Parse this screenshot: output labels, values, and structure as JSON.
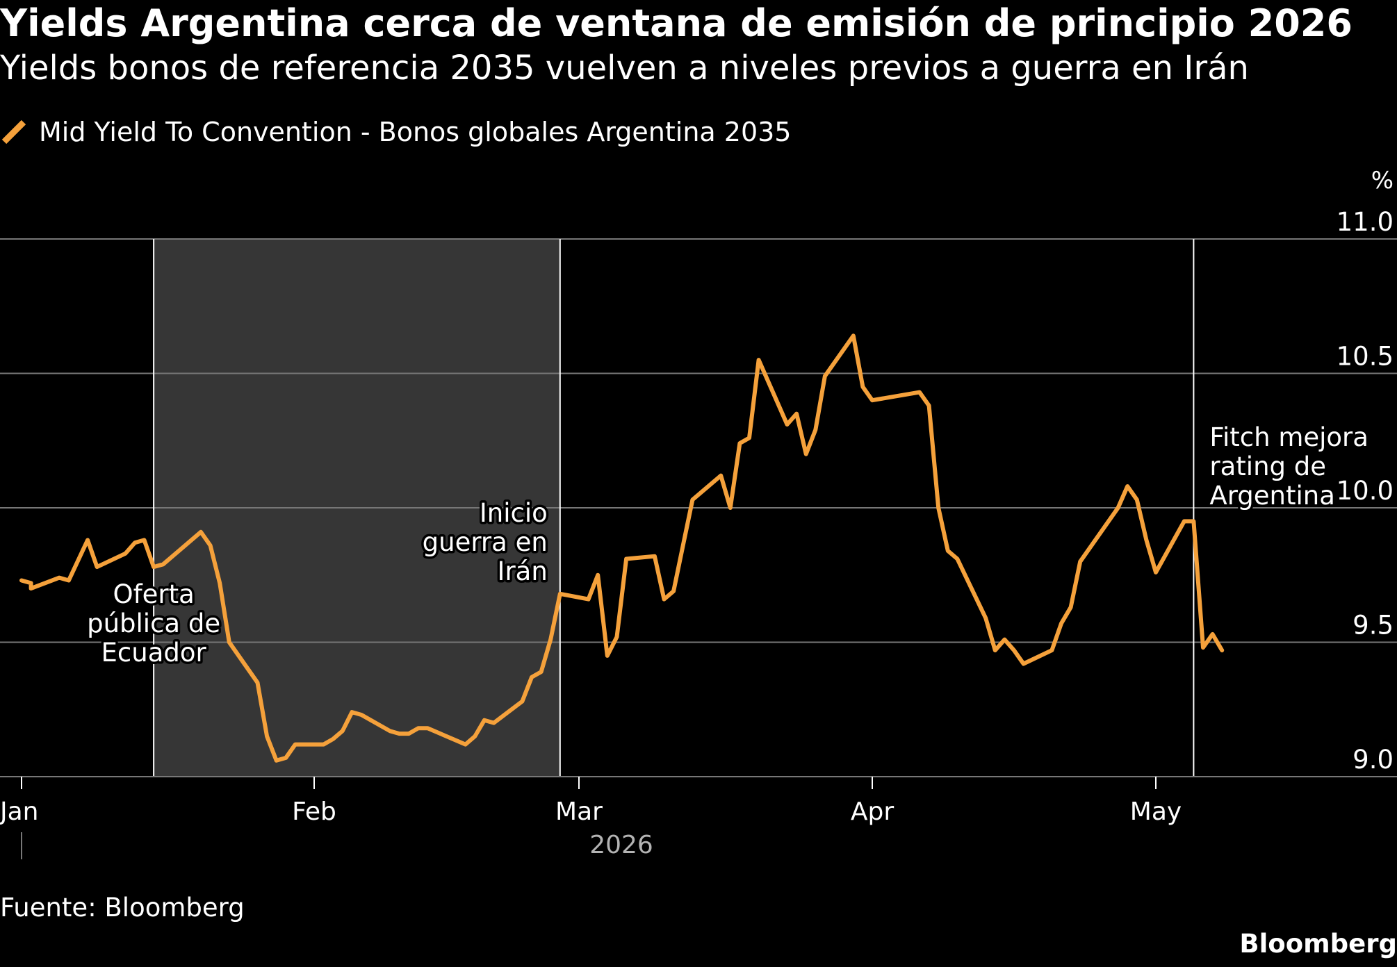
{
  "title": "Yields Argentina cerca de ventana de emisión de principio 2026",
  "subtitle": "Yields bonos de referencia 2035 vuelven a niveles previos a guerra en Irán",
  "legend": {
    "label": "Mid Yield To Convention - Bonos globales Argentina 2035",
    "color": "#f5a13b",
    "icon": "diagonal-line-icon"
  },
  "source": "Fuente: Bloomberg",
  "brand": "Bloomberg",
  "colors": {
    "background": "#000000",
    "line": "#f5a13b",
    "shaded_region": "#363636",
    "gridline": "#777777",
    "reference_line": "#ffffff",
    "text": "#ffffff",
    "year_label": "#b3b3b3"
  },
  "chart_data": {
    "type": "line",
    "title": "Yields Argentina cerca de ventana de emisión de principio 2026",
    "subtitle": "Yields bonos de referencia 2035 vuelven a niveles previos a guerra en Irán",
    "y_unit": "%",
    "ylim": [
      9.0,
      11.0
    ],
    "y_ticks": [
      9.0,
      9.5,
      10.0,
      10.5,
      11.0
    ],
    "y_tick_labels": [
      "9.0",
      "9.5",
      "10.0",
      "10.5",
      "11.0"
    ],
    "xlim": [
      "2026-01-01",
      "2026-05-31"
    ],
    "x_ticks": [
      "2026-01-01",
      "2026-02-01",
      "2026-03-01",
      "2026-04-01",
      "2026-05-01"
    ],
    "x_tick_labels": [
      "Jan",
      "Feb",
      "Mar",
      "Apr",
      "May"
    ],
    "x_year_label": "2026",
    "grid": true,
    "legend_position": "top-left",
    "series": [
      {
        "name": "Mid Yield To Convention - Bonos globales Argentina 2035",
        "color": "#f5a13b",
        "points": [
          [
            "2026-01-01",
            9.73
          ],
          [
            "2026-01-02",
            9.72
          ],
          [
            "2026-01-02",
            9.7
          ],
          [
            "2026-01-05",
            9.74
          ],
          [
            "2026-01-06",
            9.73
          ],
          [
            "2026-01-08",
            9.88
          ],
          [
            "2026-01-09",
            9.78
          ],
          [
            "2026-01-12",
            9.83
          ],
          [
            "2026-01-13",
            9.87
          ],
          [
            "2026-01-14",
            9.88
          ],
          [
            "2026-01-15",
            9.78
          ],
          [
            "2026-01-16",
            9.79
          ],
          [
            "2026-01-20",
            9.91
          ],
          [
            "2026-01-21",
            9.86
          ],
          [
            "2026-01-22",
            9.72
          ],
          [
            "2026-01-23",
            9.5
          ],
          [
            "2026-01-26",
            9.35
          ],
          [
            "2026-01-27",
            9.15
          ],
          [
            "2026-01-28",
            9.06
          ],
          [
            "2026-01-29",
            9.07
          ],
          [
            "2026-01-30",
            9.12
          ],
          [
            "2026-02-02",
            9.12
          ],
          [
            "2026-02-03",
            9.14
          ],
          [
            "2026-02-04",
            9.17
          ],
          [
            "2026-02-05",
            9.24
          ],
          [
            "2026-02-06",
            9.23
          ],
          [
            "2026-02-09",
            9.17
          ],
          [
            "2026-02-10",
            9.16
          ],
          [
            "2026-02-11",
            9.16
          ],
          [
            "2026-02-12",
            9.18
          ],
          [
            "2026-02-13",
            9.18
          ],
          [
            "2026-02-17",
            9.12
          ],
          [
            "2026-02-18",
            9.15
          ],
          [
            "2026-02-19",
            9.21
          ],
          [
            "2026-02-20",
            9.2
          ],
          [
            "2026-02-23",
            9.28
          ],
          [
            "2026-02-24",
            9.37
          ],
          [
            "2026-02-25",
            9.39
          ],
          [
            "2026-02-26",
            9.51
          ],
          [
            "2026-02-27",
            9.68
          ],
          [
            "2026-03-02",
            9.66
          ],
          [
            "2026-03-03",
            9.75
          ],
          [
            "2026-03-04",
            9.45
          ],
          [
            "2026-03-05",
            9.52
          ],
          [
            "2026-03-06",
            9.81
          ],
          [
            "2026-03-09",
            9.82
          ],
          [
            "2026-03-10",
            9.66
          ],
          [
            "2026-03-11",
            9.69
          ],
          [
            "2026-03-12",
            9.86
          ],
          [
            "2026-03-13",
            10.03
          ],
          [
            "2026-03-16",
            10.12
          ],
          [
            "2026-03-17",
            10.0
          ],
          [
            "2026-03-18",
            10.24
          ],
          [
            "2026-03-19",
            10.26
          ],
          [
            "2026-03-20",
            10.55
          ],
          [
            "2026-03-23",
            10.31
          ],
          [
            "2026-03-24",
            10.35
          ],
          [
            "2026-03-25",
            10.2
          ],
          [
            "2026-03-26",
            10.29
          ],
          [
            "2026-03-27",
            10.49
          ],
          [
            "2026-03-30",
            10.64
          ],
          [
            "2026-03-31",
            10.45
          ],
          [
            "2026-04-01",
            10.4
          ],
          [
            "2026-04-06",
            10.43
          ],
          [
            "2026-04-07",
            10.38
          ],
          [
            "2026-04-08",
            10.0
          ],
          [
            "2026-04-09",
            9.84
          ],
          [
            "2026-04-10",
            9.81
          ],
          [
            "2026-04-13",
            9.59
          ],
          [
            "2026-04-14",
            9.47
          ],
          [
            "2026-04-15",
            9.51
          ],
          [
            "2026-04-16",
            9.47
          ],
          [
            "2026-04-17",
            9.42
          ],
          [
            "2026-04-20",
            9.47
          ],
          [
            "2026-04-21",
            9.57
          ],
          [
            "2026-04-22",
            9.63
          ],
          [
            "2026-04-23",
            9.8
          ],
          [
            "2026-04-27",
            10.0
          ],
          [
            "2026-04-28",
            10.08
          ],
          [
            "2026-04-29",
            10.03
          ],
          [
            "2026-04-30",
            9.88
          ],
          [
            "2026-05-01",
            9.76
          ],
          [
            "2026-05-04",
            9.95
          ],
          [
            "2026-05-05",
            9.95
          ],
          [
            "2026-05-06",
            9.48
          ],
          [
            "2026-05-07",
            9.53
          ],
          [
            "2026-05-08",
            9.47
          ]
        ]
      }
    ],
    "shaded_range": [
      "2026-01-15",
      "2026-02-27"
    ],
    "annotations": [
      {
        "date": "2026-01-15",
        "lines": [
          "Oferta",
          "pública de",
          "Ecuador"
        ]
      },
      {
        "date": "2026-02-27",
        "lines": [
          "Inicio",
          "guerra en",
          "Irán"
        ]
      },
      {
        "date": "2026-05-05",
        "lines": [
          "Fitch mejora",
          "rating de",
          "Argentina"
        ]
      }
    ]
  }
}
